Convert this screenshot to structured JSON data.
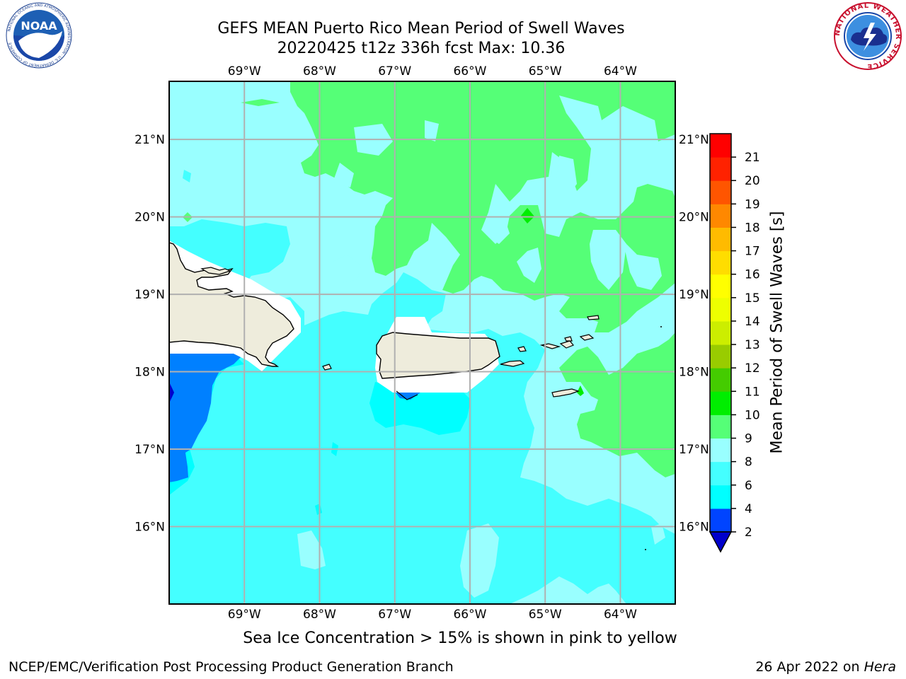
{
  "title": {
    "line1": "GEFS MEAN Puerto Rico Mean Period of Swell Waves",
    "line2": "20220425 t12z 336h fcst   Max: 10.36"
  },
  "logos": {
    "left": {
      "text": "NOAA",
      "ring_text": "NATIONAL OCEANIC AND ATMOSPHERIC ADMINISTRATION · U.S. DEPARTMENT OF COMMERCE"
    },
    "right": {
      "ring_text": "NATIONAL WEATHER SERVICE"
    }
  },
  "map": {
    "lon_labels": [
      "69°W",
      "68°W",
      "67°W",
      "66°W",
      "65°W",
      "64°W"
    ],
    "lon_values": [
      -69,
      -68,
      -67,
      -66,
      -65,
      -64
    ],
    "lat_labels": [
      "21°N",
      "20°N",
      "19°N",
      "18°N",
      "17°N",
      "16°N"
    ],
    "lat_values": [
      21,
      20,
      19,
      18,
      17,
      16
    ],
    "extent": {
      "lon_min": -70.0,
      "lon_max": -63.27,
      "lat_min": 15.0,
      "lat_max": 21.75
    },
    "land_color": "#eeecdc",
    "grid_color": "#b0b0b0"
  },
  "colorbar": {
    "label": "Mean Period of Swell Waves [s]",
    "tick_labels": [
      "2",
      "4",
      "6",
      "8",
      "9",
      "10",
      "11",
      "12",
      "13",
      "14",
      "15",
      "16",
      "17",
      "18",
      "19",
      "20",
      "21"
    ],
    "colors": [
      "#0044ff",
      "#00ffff",
      "#44ffff",
      "#99ffff",
      "#55ff77",
      "#00ee00",
      "#44cc00",
      "#99cc00",
      "#ccee00",
      "#eeff00",
      "#ffff00",
      "#ffdd00",
      "#ffbb00",
      "#ff8800",
      "#ff5500",
      "#ff2200",
      "#ff0000"
    ],
    "under_color": "#0000cc"
  },
  "caption": "Sea Ice Concentration > 15% is shown in pink to yellow",
  "footer": {
    "left": "NCEP/EMC/Verification Post Processing Product Generation Branch",
    "right_date": "26 Apr 2022 on ",
    "right_host": "Hera"
  }
}
